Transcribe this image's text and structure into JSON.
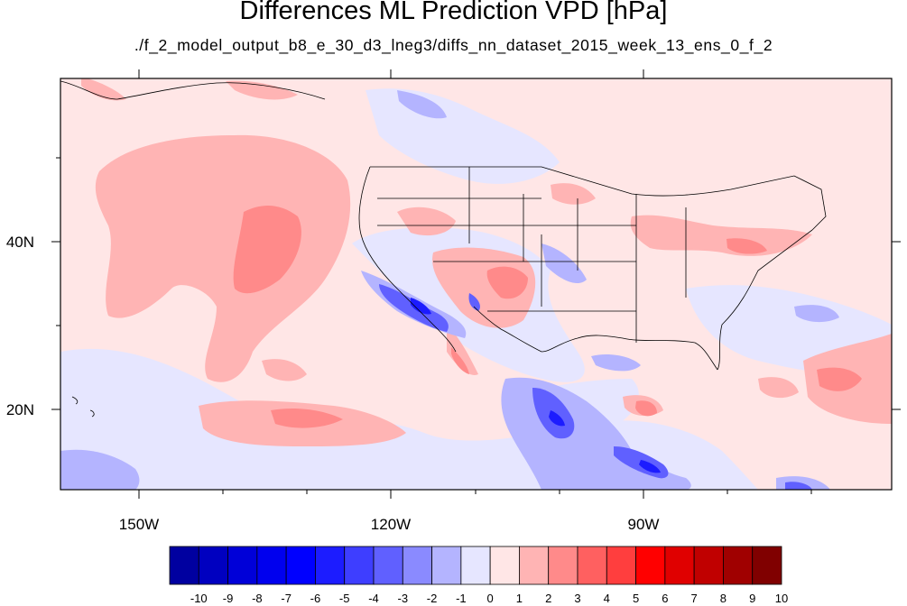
{
  "title": "Differences ML Prediction VPD [hPa]",
  "subtitle": "./f_2_model_output_b8_e_30_d3_lneg3/diffs_nn_dataset_2015_week_13_ens_0_f_2",
  "map": {
    "lon_labels": [
      "150W",
      "120W",
      "90W"
    ],
    "lat_labels": [
      "40N",
      "20N"
    ],
    "background_color": "#ffe6e6"
  },
  "colorbar": {
    "labels": [
      "-10",
      "-9",
      "-8",
      "-7",
      "-6",
      "-5",
      "-4",
      "-3",
      "-2",
      "-1",
      "0",
      "1",
      "2",
      "3",
      "4",
      "5",
      "6",
      "7",
      "8",
      "9",
      "10"
    ],
    "colors": [
      "#0000a0",
      "#0000c0",
      "#0000d8",
      "#0000ee",
      "#0000ff",
      "#1c1cff",
      "#3e3eff",
      "#6060ff",
      "#8a8aff",
      "#b4b4ff",
      "#e6e6ff",
      "#ffe6e6",
      "#ffb4b4",
      "#ff8a8a",
      "#ff6060",
      "#ff3e3e",
      "#ff0000",
      "#e00000",
      "#c00000",
      "#a00000",
      "#800000"
    ]
  }
}
